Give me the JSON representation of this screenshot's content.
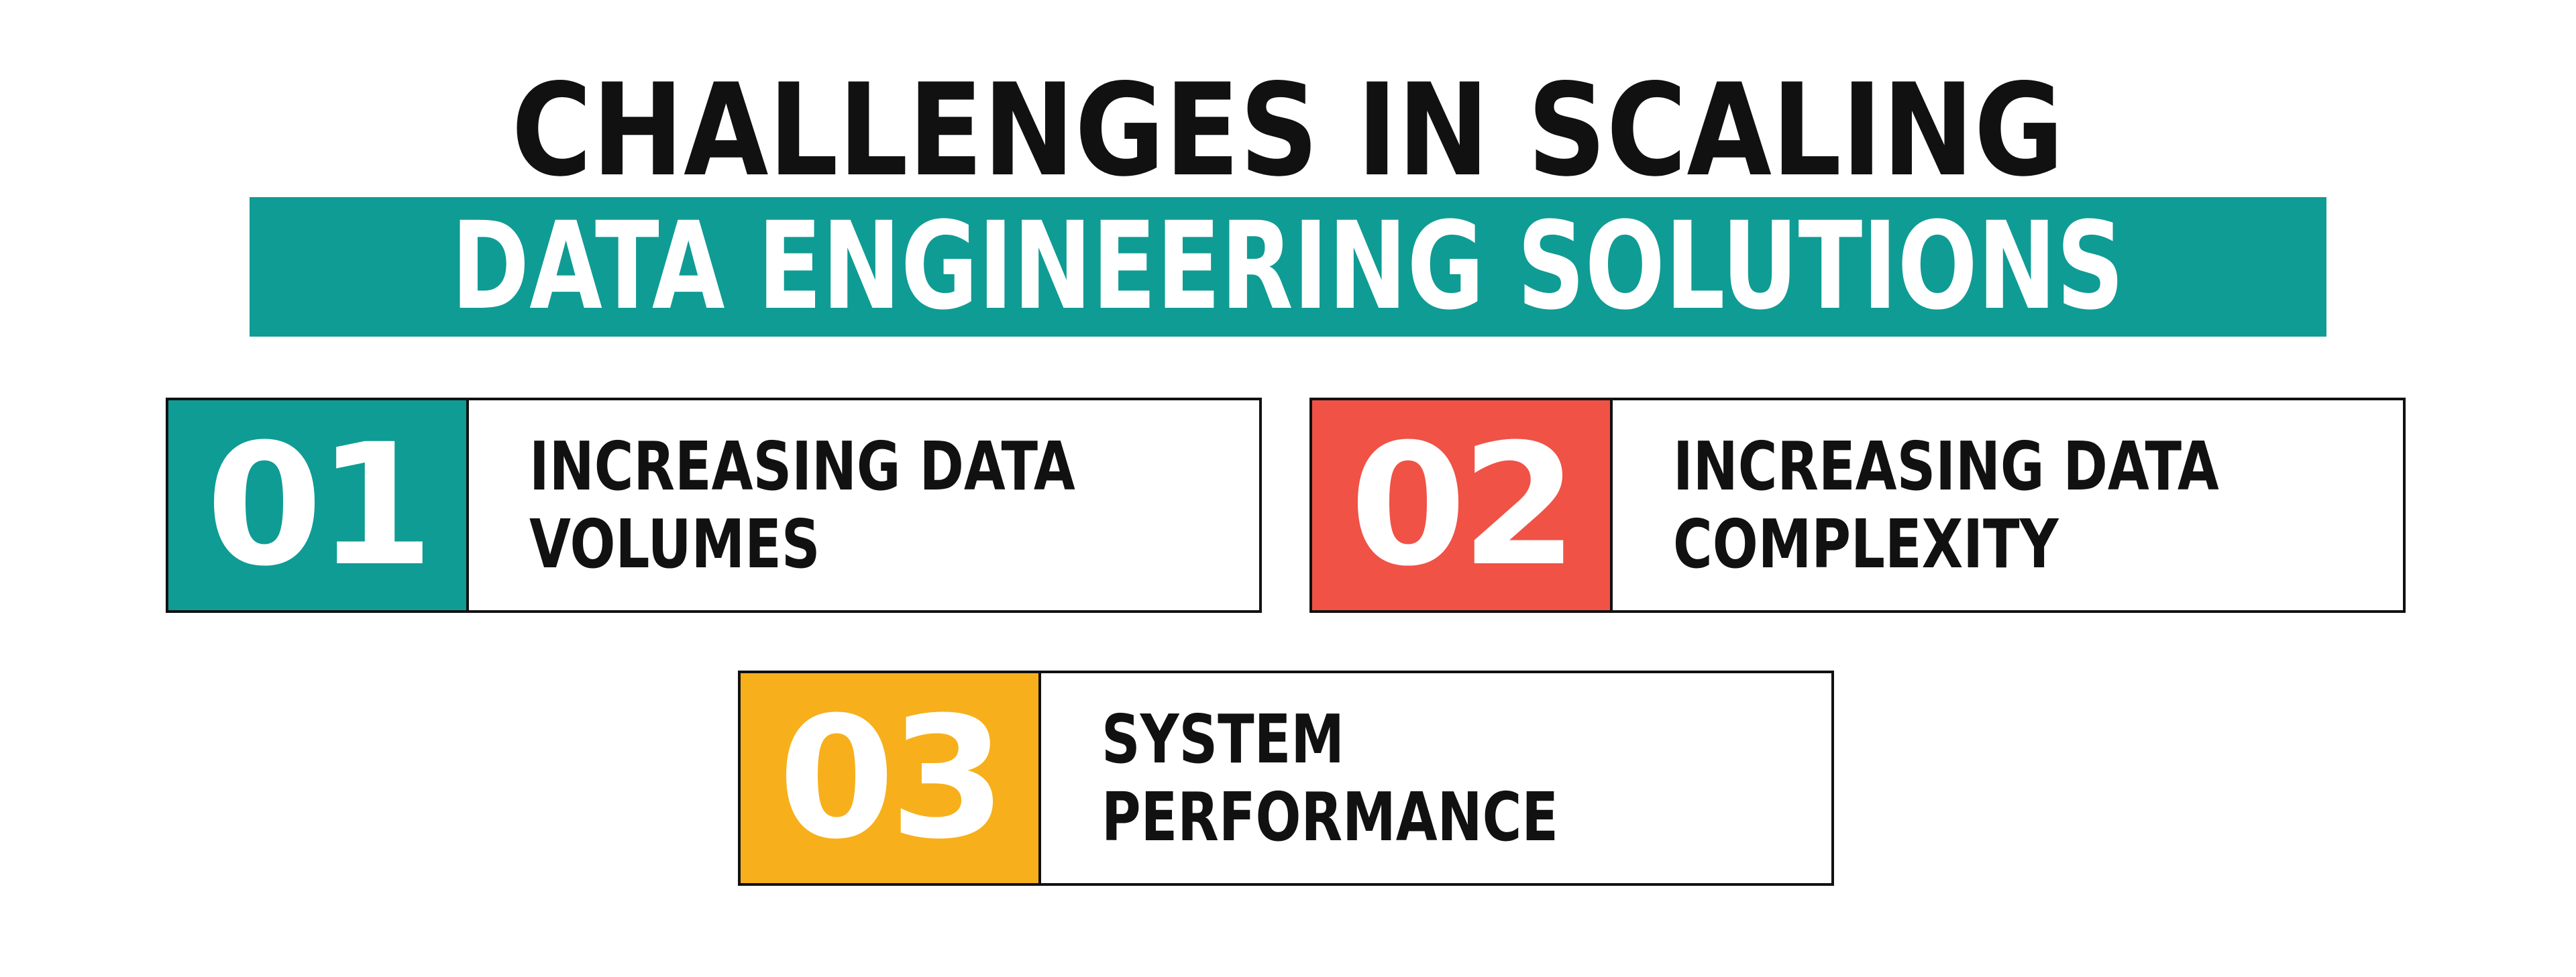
{
  "title": {
    "line1": "CHALLENGES IN SCALING",
    "line2": "DATA ENGINEERING SOLUTIONS"
  },
  "colors": {
    "teal": "#0f9c94",
    "red": "#f05246",
    "yellow": "#f7b01b",
    "text": "#111111"
  },
  "cards": [
    {
      "number": "01",
      "line1": "INCREASING DATA",
      "line2": "VOLUMES",
      "color": "#0f9c94"
    },
    {
      "number": "02",
      "line1": "INCREASING DATA",
      "line2": "COMPLEXITY",
      "color": "#f05246"
    },
    {
      "number": "03",
      "line1": "SYSTEM",
      "line2": "PERFORMANCE",
      "color": "#f7b01b"
    }
  ]
}
